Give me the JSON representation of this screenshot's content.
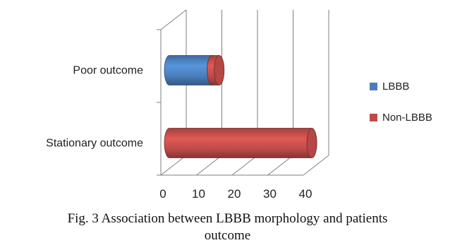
{
  "chart_data": {
    "type": "bar",
    "orientation": "horizontal",
    "style": "3d-cylinder",
    "categories": [
      "Poor outcome",
      "Stationary outcome"
    ],
    "series": [
      {
        "name": "LBBB",
        "color": "#4a7ebb",
        "values": [
          12,
          0
        ]
      },
      {
        "name": "Non-LBBB",
        "color": "#be4b48",
        "values": [
          2,
          40
        ]
      }
    ],
    "stacked": true,
    "xlim": [
      0,
      40
    ],
    "xticks": [
      "0",
      "10",
      "20",
      "30",
      "40"
    ],
    "grid": true,
    "legend_position": "right"
  },
  "caption": {
    "line1": "Fig. 3 Association between LBBB morphology and patients",
    "line2": "outcome"
  }
}
